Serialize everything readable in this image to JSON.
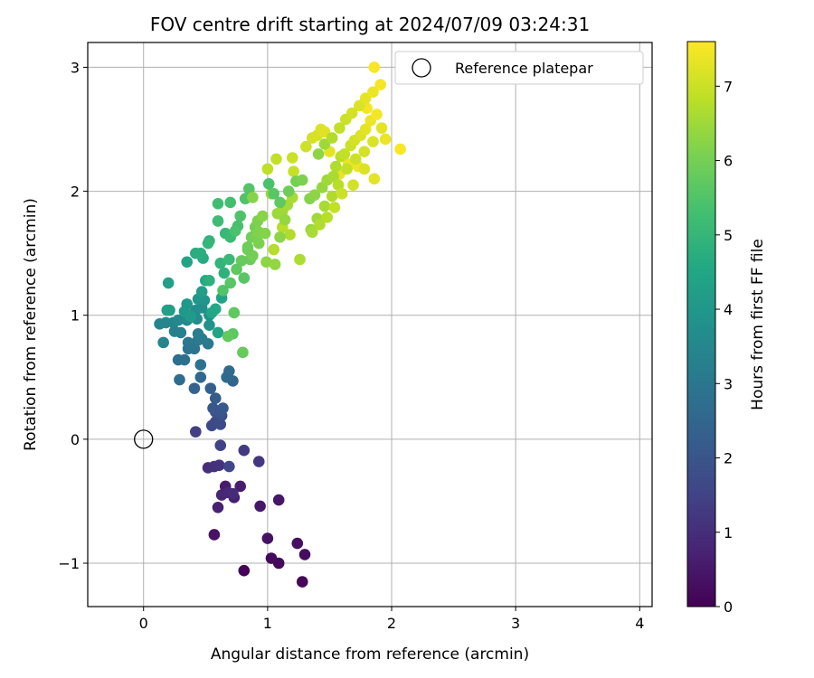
{
  "chart_data": {
    "type": "scatter",
    "title": "FOV centre drift starting at 2024/07/09 03:24:31",
    "xlabel": "Angular distance from reference (arcmin)",
    "ylabel": "Rotation from reference (arcmin)",
    "xlim": [
      -0.45,
      4.1
    ],
    "ylim": [
      -1.35,
      3.2
    ],
    "xticks": [
      0,
      1,
      2,
      3,
      4
    ],
    "yticks": [
      -1,
      0,
      1,
      2,
      3
    ],
    "xtick_labels": [
      "0",
      "1",
      "2",
      "3",
      "4"
    ],
    "ytick_labels": [
      "−1",
      "0",
      "1",
      "2",
      "3"
    ],
    "grid": true,
    "colormap": "viridis",
    "colorbar": {
      "label": "Hours from first FF file",
      "range": [
        0,
        7.6
      ],
      "ticks": [
        0,
        1,
        2,
        3,
        4,
        5,
        6,
        7
      ],
      "tick_labels": [
        "0",
        "1",
        "2",
        "3",
        "4",
        "5",
        "6",
        "7"
      ]
    },
    "legend": {
      "position": "top-right",
      "entries": [
        {
          "label": "Reference platepar",
          "marker": "open-circle",
          "x": 0,
          "y": 0
        }
      ]
    },
    "points": [
      [
        0.81,
        -1.06,
        0.05
      ],
      [
        1.28,
        -1.15,
        0.1
      ],
      [
        1.09,
        -1.0,
        0.15
      ],
      [
        1.03,
        -0.96,
        0.2
      ],
      [
        1.3,
        -0.93,
        0.25
      ],
      [
        1.24,
        -0.84,
        0.3
      ],
      [
        1.0,
        -0.8,
        0.35
      ],
      [
        0.57,
        -0.77,
        0.4
      ],
      [
        1.09,
        -0.49,
        0.45
      ],
      [
        0.94,
        -0.54,
        0.5
      ],
      [
        0.66,
        -0.38,
        0.55
      ],
      [
        0.78,
        -0.38,
        0.6
      ],
      [
        0.73,
        -0.47,
        0.65
      ],
      [
        0.6,
        -0.55,
        0.7
      ],
      [
        0.63,
        -0.45,
        0.8
      ],
      [
        0.68,
        -0.43,
        0.85
      ],
      [
        0.72,
        -0.44,
        0.9
      ],
      [
        0.52,
        -0.23,
        1.0
      ],
      [
        0.57,
        -0.22,
        1.05
      ],
      [
        0.61,
        -0.21,
        1.1
      ],
      [
        0.93,
        -0.18,
        1.2
      ],
      [
        0.81,
        -0.09,
        1.3
      ],
      [
        0.42,
        0.06,
        1.4
      ],
      [
        0.62,
        -0.05,
        1.5
      ],
      [
        0.69,
        -0.22,
        1.6
      ],
      [
        0.55,
        0.11,
        1.65
      ],
      [
        0.58,
        0.14,
        1.7
      ],
      [
        0.62,
        0.12,
        1.75
      ],
      [
        0.63,
        0.19,
        1.8
      ],
      [
        0.58,
        0.22,
        1.9
      ],
      [
        0.62,
        0.21,
        2.0
      ],
      [
        0.56,
        0.25,
        2.05
      ],
      [
        0.64,
        0.25,
        2.1
      ],
      [
        0.58,
        0.33,
        2.2
      ],
      [
        0.54,
        0.41,
        2.3
      ],
      [
        0.41,
        0.41,
        2.4
      ],
      [
        0.72,
        0.47,
        2.5
      ],
      [
        0.46,
        0.5,
        2.55
      ],
      [
        0.67,
        0.5,
        2.6
      ],
      [
        0.69,
        0.55,
        2.65
      ],
      [
        0.29,
        0.48,
        2.7
      ],
      [
        0.28,
        0.64,
        2.75
      ],
      [
        0.33,
        0.64,
        2.8
      ],
      [
        0.46,
        0.6,
        2.85
      ],
      [
        0.36,
        0.73,
        2.9
      ],
      [
        0.41,
        0.73,
        2.95
      ],
      [
        0.36,
        0.78,
        3.0
      ],
      [
        0.44,
        0.8,
        3.05
      ],
      [
        0.52,
        0.77,
        3.1
      ],
      [
        0.47,
        0.81,
        3.15
      ],
      [
        0.44,
        0.85,
        3.2
      ],
      [
        0.3,
        0.86,
        3.25
      ],
      [
        0.25,
        0.87,
        3.3
      ],
      [
        0.24,
        0.94,
        3.35
      ],
      [
        0.16,
        0.78,
        3.4
      ],
      [
        0.13,
        0.93,
        3.45
      ],
      [
        0.18,
        0.94,
        3.5
      ],
      [
        0.28,
        0.96,
        3.55
      ],
      [
        0.35,
        0.96,
        3.6
      ],
      [
        0.43,
        0.97,
        3.65
      ],
      [
        0.42,
        1.04,
        3.7
      ],
      [
        0.47,
        1.06,
        3.75
      ],
      [
        0.53,
        1.0,
        3.8
      ],
      [
        0.53,
        0.92,
        3.85
      ],
      [
        0.49,
        1.12,
        3.9
      ],
      [
        0.44,
        1.13,
        3.95
      ],
      [
        0.35,
        1.09,
        4.0
      ],
      [
        0.33,
        1.03,
        4.05
      ],
      [
        0.38,
        0.99,
        4.1
      ],
      [
        0.21,
        1.04,
        4.15
      ],
      [
        0.47,
        1.19,
        4.2
      ],
      [
        0.19,
        1.04,
        4.25
      ],
      [
        0.2,
        1.26,
        4.3
      ],
      [
        0.63,
        1.14,
        4.35
      ],
      [
        0.35,
        1.43,
        4.4
      ],
      [
        0.6,
        0.86,
        4.45
      ],
      [
        0.55,
        1.02,
        4.5
      ],
      [
        0.58,
        1.05,
        4.55
      ],
      [
        0.5,
        1.28,
        4.6
      ],
      [
        0.48,
        1.46,
        4.65
      ],
      [
        0.42,
        1.5,
        4.7
      ],
      [
        0.46,
        1.5,
        4.75
      ],
      [
        0.53,
        1.28,
        4.8
      ],
      [
        0.65,
        1.34,
        4.85
      ],
      [
        0.53,
        1.6,
        4.9
      ],
      [
        0.62,
        1.42,
        4.95
      ],
      [
        0.52,
        1.58,
        5.0
      ],
      [
        0.66,
        1.66,
        5.05
      ],
      [
        0.69,
        1.45,
        5.1
      ],
      [
        0.7,
        1.63,
        5.15
      ],
      [
        0.6,
        1.76,
        5.2
      ],
      [
        0.6,
        1.9,
        5.25
      ],
      [
        0.7,
        1.91,
        5.3
      ],
      [
        0.76,
        1.72,
        5.35
      ],
      [
        0.74,
        1.68,
        5.4
      ],
      [
        0.78,
        1.8,
        5.45
      ],
      [
        0.82,
        1.94,
        5.5
      ],
      [
        0.85,
        2.02,
        5.55
      ],
      [
        0.81,
        1.3,
        5.6
      ],
      [
        0.72,
        0.85,
        5.65
      ],
      [
        0.73,
        1.02,
        5.7
      ],
      [
        0.68,
        0.83,
        5.75
      ],
      [
        0.8,
        0.7,
        5.8
      ],
      [
        0.86,
        1.45,
        5.85
      ],
      [
        0.84,
        1.55,
        5.9
      ],
      [
        0.87,
        1.63,
        5.95
      ],
      [
        0.9,
        1.71,
        6.0
      ],
      [
        0.91,
        1.63,
        6.05
      ],
      [
        0.92,
        1.76,
        6.1
      ],
      [
        0.93,
        1.67,
        6.15
      ],
      [
        0.88,
        1.95,
        6.2
      ],
      [
        0.96,
        1.8,
        6.25
      ],
      [
        0.99,
        1.43,
        6.3
      ],
      [
        1.06,
        1.41,
        6.35
      ],
      [
        1.03,
        1.98,
        6.4
      ],
      [
        1.08,
        1.82,
        6.45
      ],
      [
        1.12,
        1.84,
        6.5
      ],
      [
        1.16,
        1.89,
        6.55
      ],
      [
        1.2,
        1.95,
        6.6
      ],
      [
        1.26,
        1.45,
        6.65
      ],
      [
        1.18,
        1.65,
        6.7
      ],
      [
        1.05,
        1.53,
        6.75
      ],
      [
        1.12,
        1.71,
        6.8
      ],
      [
        1.0,
        2.18,
        6.85
      ],
      [
        1.07,
        2.26,
        6.9
      ],
      [
        1.21,
        2.16,
        6.95
      ],
      [
        1.2,
        2.27,
        7.0
      ],
      [
        1.31,
        2.36,
        7.05
      ],
      [
        1.36,
        2.43,
        7.1
      ],
      [
        1.4,
        2.45,
        7.15
      ],
      [
        1.43,
        2.5,
        7.2
      ],
      [
        1.46,
        2.48,
        7.25
      ],
      [
        1.5,
        2.32,
        7.3
      ],
      [
        1.58,
        2.14,
        7.35
      ],
      [
        1.65,
        2.22,
        7.4
      ],
      [
        1.73,
        2.2,
        7.45
      ],
      [
        1.8,
        2.67,
        7.5
      ],
      [
        1.86,
        3.0,
        7.55
      ],
      [
        1.01,
        2.06,
        5.4
      ],
      [
        1.05,
        1.98,
        5.6
      ],
      [
        1.1,
        1.91,
        5.7
      ],
      [
        1.17,
        2.0,
        5.9
      ],
      [
        1.23,
        2.08,
        6.0
      ],
      [
        1.28,
        2.09,
        6.1
      ],
      [
        1.34,
        1.94,
        6.2
      ],
      [
        1.38,
        1.97,
        6.3
      ],
      [
        1.44,
        2.03,
        6.4
      ],
      [
        1.48,
        2.09,
        6.5
      ],
      [
        1.53,
        2.12,
        6.6
      ],
      [
        1.55,
        2.2,
        6.7
      ],
      [
        1.59,
        2.28,
        6.8
      ],
      [
        1.62,
        2.3,
        6.9
      ],
      [
        1.67,
        2.37,
        7.0
      ],
      [
        1.7,
        2.41,
        7.1
      ],
      [
        1.75,
        2.45,
        7.2
      ],
      [
        1.79,
        2.5,
        7.3
      ],
      [
        1.83,
        2.57,
        7.4
      ],
      [
        1.88,
        2.62,
        7.5
      ],
      [
        1.92,
        2.51,
        7.3
      ],
      [
        1.85,
        2.4,
        7.2
      ],
      [
        1.78,
        2.32,
        7.1
      ],
      [
        1.71,
        2.26,
        7.0
      ],
      [
        1.64,
        2.18,
        6.9
      ],
      [
        1.57,
        2.05,
        6.8
      ],
      [
        1.52,
        1.96,
        6.7
      ],
      [
        1.46,
        1.88,
        6.6
      ],
      [
        1.4,
        1.78,
        6.5
      ],
      [
        1.35,
        1.69,
        6.4
      ],
      [
        1.41,
        2.3,
        6.3
      ],
      [
        1.46,
        2.38,
        6.5
      ],
      [
        1.52,
        2.43,
        6.7
      ],
      [
        1.58,
        2.51,
        6.9
      ],
      [
        1.63,
        2.58,
        7.0
      ],
      [
        1.68,
        2.63,
        7.1
      ],
      [
        1.74,
        2.69,
        7.2
      ],
      [
        1.79,
        2.75,
        7.3
      ],
      [
        1.85,
        2.8,
        7.4
      ],
      [
        1.91,
        2.86,
        7.5
      ],
      [
        2.07,
        2.34,
        7.55
      ],
      [
        1.95,
        2.42,
        7.4
      ],
      [
        1.86,
        2.1,
        7.3
      ],
      [
        1.78,
        2.18,
        7.2
      ],
      [
        1.69,
        2.05,
        7.1
      ],
      [
        1.6,
        1.98,
        7.0
      ],
      [
        1.54,
        1.87,
        6.9
      ],
      [
        1.48,
        1.79,
        6.8
      ],
      [
        1.42,
        1.73,
        6.7
      ],
      [
        1.36,
        1.67,
        6.6
      ],
      [
        1.14,
        1.77,
        6.4
      ],
      [
        1.1,
        1.63,
        6.3
      ],
      [
        0.98,
        1.66,
        6.2
      ],
      [
        0.93,
        1.58,
        6.1
      ],
      [
        0.88,
        1.48,
        6.0
      ],
      [
        0.84,
        1.53,
        5.9
      ],
      [
        0.79,
        1.44,
        5.8
      ],
      [
        0.75,
        1.37,
        5.7
      ],
      [
        0.7,
        1.26,
        5.6
      ],
      [
        0.64,
        1.2,
        5.5
      ]
    ]
  }
}
